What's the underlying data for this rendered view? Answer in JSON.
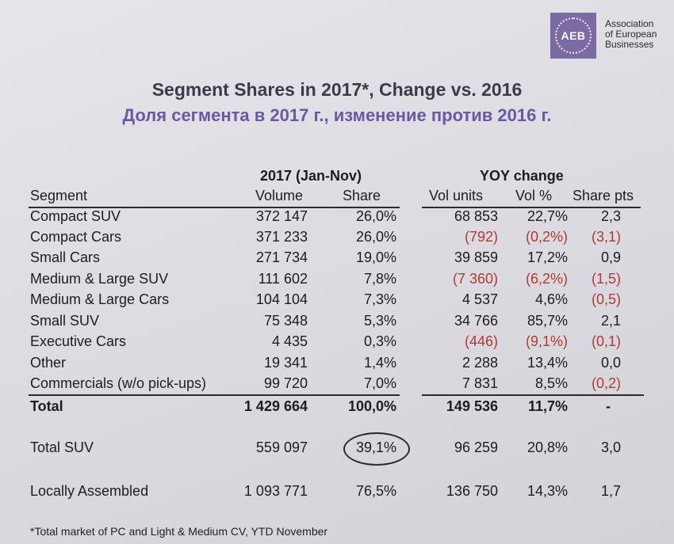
{
  "logo": {
    "abbr": "AEB",
    "name_lines": [
      "Association",
      "of European",
      "Businesses"
    ]
  },
  "title": "Segment Shares in 2017*, Change vs. 2016",
  "subtitle": "Доля сегмента в 2017 г., изменение против 2016 г.",
  "headers": {
    "group1": "2017 (Jan-Nov)",
    "group2": "YOY change",
    "segment": "Segment",
    "volume": "Volume",
    "share": "Share",
    "vol_units": "Vol units",
    "vol_pct": "Vol %",
    "share_pts": "Share pts"
  },
  "rows": [
    {
      "segment": "Compact SUV",
      "volume": "372 147",
      "share": "26,0%",
      "vol_units": "68 853",
      "vol_pct": "22,7%",
      "share_pts": "2,3"
    },
    {
      "segment": "Compact Cars",
      "volume": "371 233",
      "share": "26,0%",
      "vol_units": "(792)",
      "vol_pct": "(0,2%)",
      "share_pts": "(3,1)"
    },
    {
      "segment": "Small Cars",
      "volume": "271 734",
      "share": "19,0%",
      "vol_units": "39 859",
      "vol_pct": "17,2%",
      "share_pts": "0,9"
    },
    {
      "segment": "Medium & Large SUV",
      "volume": "111 602",
      "share": "7,8%",
      "vol_units": "(7 360)",
      "vol_pct": "(6,2%)",
      "share_pts": "(1,5)"
    },
    {
      "segment": "Medium & Large Cars",
      "volume": "104 104",
      "share": "7,3%",
      "vol_units": "4 537",
      "vol_pct": "4,6%",
      "share_pts": "(0,5)"
    },
    {
      "segment": "Small SUV",
      "volume": "75 348",
      "share": "5,3%",
      "vol_units": "34 766",
      "vol_pct": "85,7%",
      "share_pts": "2,1"
    },
    {
      "segment": "Executive Cars",
      "volume": "4 435",
      "share": "0,3%",
      "vol_units": "(446)",
      "vol_pct": "(9,1%)",
      "share_pts": "(0,1)"
    },
    {
      "segment": "Other",
      "volume": "19 341",
      "share": "1,4%",
      "vol_units": "2 288",
      "vol_pct": "13,4%",
      "share_pts": "0,0"
    },
    {
      "segment": "Commercials (w/o pick-ups)",
      "volume": "99 720",
      "share": "7,0%",
      "vol_units": "7 831",
      "vol_pct": "8,5%",
      "share_pts": "(0,2)"
    }
  ],
  "total": {
    "segment": "Total",
    "volume": "1 429 664",
    "share": "100,0%",
    "vol_units": "149 536",
    "vol_pct": "11,7%",
    "share_pts": "-"
  },
  "total_suv": {
    "segment": "Total SUV",
    "volume": "559 097",
    "share": "39,1%",
    "vol_units": "96 259",
    "vol_pct": "20,8%",
    "share_pts": "3,0"
  },
  "local": {
    "segment": "Locally Assembled",
    "volume": "1 093 771",
    "share": "76,5%",
    "vol_units": "136 750",
    "vol_pct": "14,3%",
    "share_pts": "1,7"
  },
  "footnote": "*Total market of PC and Light & Medium CV, YTD November",
  "colors": {
    "negative": "#b23a2c",
    "title": "#3f3a4a",
    "subtitle": "#6b58a2",
    "logo": "#7b6aa3"
  }
}
